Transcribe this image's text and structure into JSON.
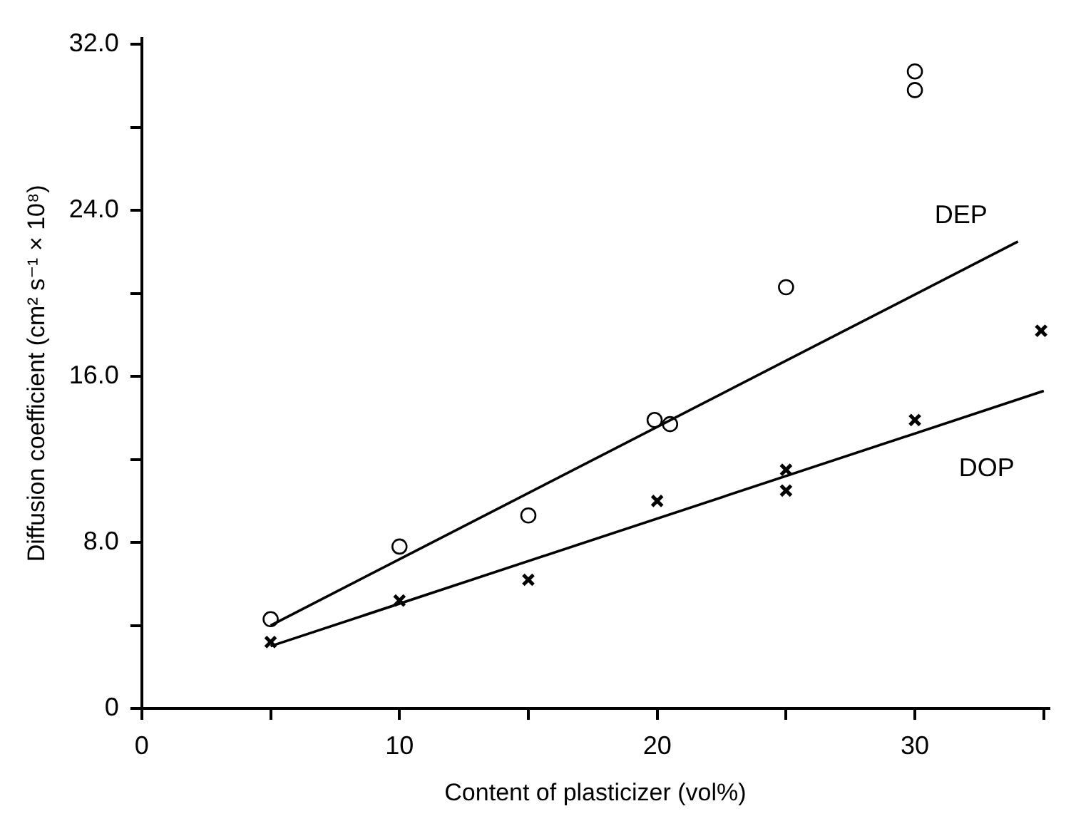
{
  "chart_data": {
    "type": "scatter",
    "xlabel": "Content of plasticizer (vol%)",
    "ylabel": "Diffusion coefficient (cm² s⁻¹ × 10⁸)",
    "xlim": [
      0,
      35.2
    ],
    "ylim": [
      0,
      32.3
    ],
    "xticks": [
      0,
      {
        "value": 5,
        "label": null
      },
      10,
      {
        "value": 15,
        "label": null
      },
      20,
      {
        "value": 25,
        "label": null
      },
      30,
      {
        "value": 35,
        "label": null
      }
    ],
    "yticks": [
      0,
      {
        "value": 4,
        "label": null
      },
      {
        "value": 8,
        "label": "8.0"
      },
      {
        "value": 12,
        "label": null
      },
      {
        "value": 16,
        "label": "16.0"
      },
      {
        "value": 20,
        "label": null
      },
      {
        "value": 24,
        "label": "24.0"
      },
      {
        "value": 28,
        "label": null
      },
      {
        "value": 32,
        "label": "32.0"
      }
    ],
    "series": [
      {
        "marker": "circle",
        "color": "#000000",
        "x": [
          5,
          10,
          15,
          19.9,
          20.5,
          25,
          30,
          30
        ],
        "values": [
          4.3,
          7.8,
          9.3,
          13.9,
          13.7,
          20.3,
          30.7,
          29.8
        ]
      },
      {
        "marker": "cross",
        "color": "#000000",
        "x": [
          5,
          10,
          15,
          20,
          25,
          25,
          30,
          34.9
        ],
        "values": [
          3.2,
          5.2,
          6.2,
          10.0,
          11.5,
          10.5,
          13.9,
          18.2
        ]
      },
      {
        "type": "line",
        "name": "DEP",
        "marker": "none",
        "color": "#000000",
        "x": [
          5,
          34
        ],
        "values": [
          4.0,
          22.5
        ]
      },
      {
        "type": "line",
        "name": "DOP",
        "marker": "none",
        "color": "#000000",
        "x": [
          5,
          35
        ],
        "values": [
          3.0,
          15.3
        ]
      }
    ]
  }
}
